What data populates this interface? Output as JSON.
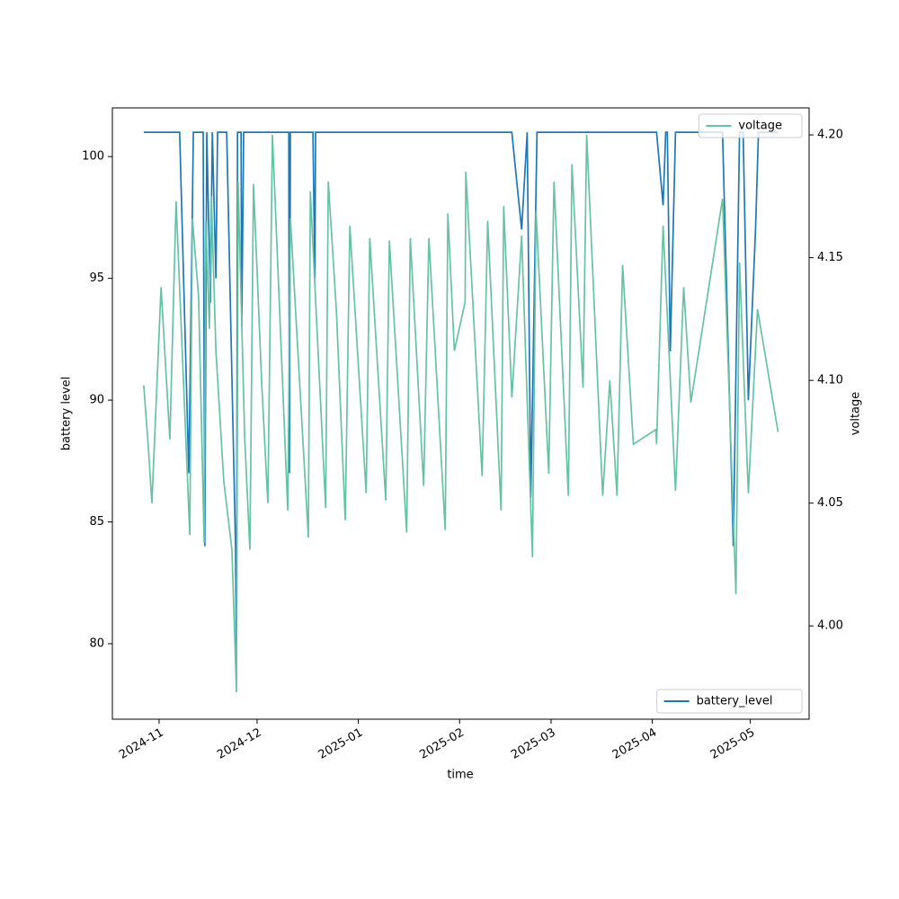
{
  "chart_data": {
    "type": "line",
    "xlabel": "time",
    "ylabel": "battery level",
    "y2label": "voltage",
    "xlim": [
      -14.3,
      199
    ],
    "xticks": [
      {
        "value": 0,
        "label": "2024-11"
      },
      {
        "value": 30,
        "label": "2024-12"
      },
      {
        "value": 61,
        "label": "2025-01"
      },
      {
        "value": 92,
        "label": "2025-02"
      },
      {
        "value": 120,
        "label": "2025-03"
      },
      {
        "value": 151,
        "label": "2025-04"
      },
      {
        "value": 181,
        "label": "2025-05"
      }
    ],
    "ylim": [
      76.9,
      102
    ],
    "yticks": [
      80,
      85,
      90,
      95,
      100
    ],
    "y2lim": [
      3.962,
      4.211
    ],
    "y2ticks": [
      {
        "value": 4.0,
        "label": "4.00"
      },
      {
        "value": 4.05,
        "label": "4.05"
      },
      {
        "value": 4.1,
        "label": "4.10"
      },
      {
        "value": 4.15,
        "label": "4.15"
      },
      {
        "value": 4.2,
        "label": "4.20"
      }
    ],
    "series": [
      {
        "name": "battery_level",
        "color": "#1f77b4",
        "legend": "lower right",
        "x": [
          -4.7,
          6.3,
          9.1,
          10.5,
          13.5,
          14.0,
          14.6,
          15.7,
          16.3,
          17.4,
          17.9,
          20.7,
          23.4,
          23.7,
          24.0,
          25.1,
          25.3,
          25.9,
          39.7,
          39.9,
          40.2,
          47.1,
          47.7,
          47.9,
          108.0,
          109.1,
          111.0,
          112.7,
          113.8,
          115.7,
          152.3,
          154.3,
          155.1,
          155.6,
          156.5,
          158.1,
          172.5,
          175.8,
          177.7,
          178.8,
          180.4,
          182.6,
          183.5,
          189.5
        ],
        "values": [
          101,
          101,
          87,
          101,
          101,
          84,
          101,
          94,
          101,
          95,
          101,
          101,
          84,
          79,
          101,
          101,
          93,
          101,
          101,
          87,
          101,
          101,
          95,
          101,
          101,
          99.5,
          97,
          101,
          86,
          101,
          101,
          98,
          101,
          101,
          92,
          101,
          101,
          84,
          101,
          101,
          90,
          97,
          101,
          101
        ]
      },
      {
        "name": "voltage",
        "color": "#66c2a5",
        "axis": "y2",
        "legend": "upper right",
        "x": [
          -4.7,
          -3.3,
          -2.2,
          0.6,
          3.3,
          5.2,
          9.4,
          10.2,
          12.1,
          13.8,
          14.3,
          15.4,
          16.0,
          17.4,
          19.8,
          22.3,
          23.7,
          24.2,
          26.2,
          27.8,
          28.9,
          31.4,
          33.3,
          34.7,
          39.4,
          40.2,
          45.7,
          46.3,
          51.0,
          51.8,
          54.3,
          57.0,
          58.4,
          63.4,
          64.5,
          69.4,
          70.5,
          75.8,
          76.9,
          81.0,
          82.6,
          87.6,
          88.4,
          90.4,
          93.7,
          93.9,
          98.9,
          100.6,
          104.7,
          105.5,
          108.0,
          111.0,
          114.3,
          115.4,
          119.3,
          120.9,
          125.3,
          126.4,
          129.8,
          130.9,
          135.8,
          138.0,
          140.2,
          141.9,
          145.2,
          152.1,
          152.3,
          154.3,
          158.1,
          160.6,
          162.8,
          172.5,
          176.6,
          177.7,
          180.4,
          183.2,
          189.5
        ],
        "values": [
          4.098,
          4.073,
          4.05,
          4.138,
          4.076,
          4.173,
          4.037,
          4.166,
          4.134,
          4.034,
          4.165,
          4.121,
          4.175,
          4.112,
          4.059,
          4.031,
          3.973,
          4.181,
          4.077,
          4.031,
          4.18,
          4.099,
          4.05,
          4.2,
          4.047,
          4.166,
          4.036,
          4.177,
          4.048,
          4.181,
          4.128,
          4.043,
          4.163,
          4.054,
          4.158,
          4.051,
          4.157,
          4.038,
          4.158,
          4.057,
          4.158,
          4.039,
          4.168,
          4.112,
          4.132,
          4.185,
          4.061,
          4.165,
          4.047,
          4.171,
          4.093,
          4.159,
          4.028,
          4.169,
          4.062,
          4.181,
          4.053,
          4.188,
          4.097,
          4.2,
          4.053,
          4.1,
          4.053,
          4.147,
          4.074,
          4.08,
          4.074,
          4.163,
          4.055,
          4.138,
          4.091,
          4.174,
          4.013,
          4.148,
          4.054,
          4.129,
          4.079
        ]
      }
    ]
  }
}
